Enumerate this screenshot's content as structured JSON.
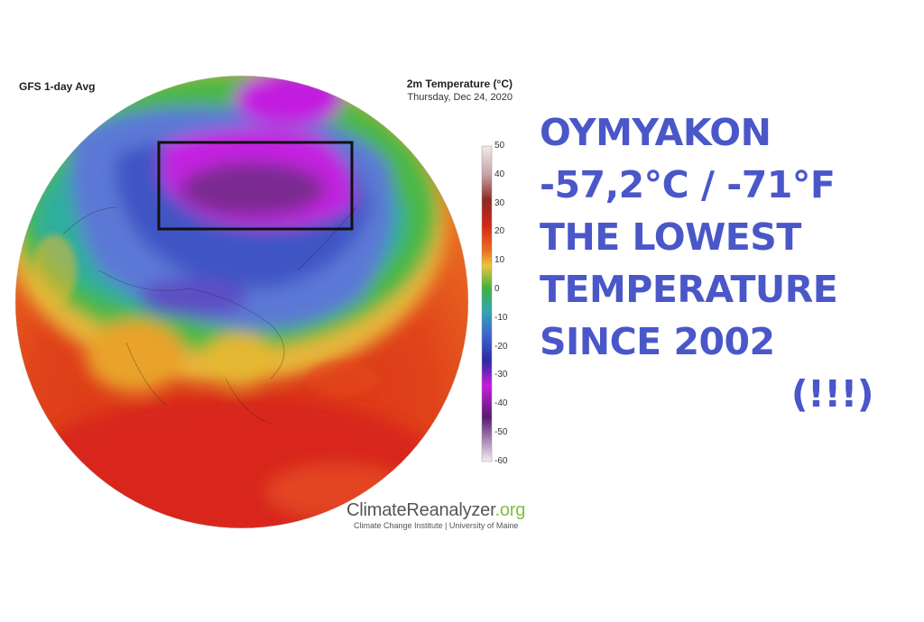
{
  "map": {
    "model_label": "GFS 1-day Avg",
    "variable_title": "2m Temperature (°C)",
    "date": "Thursday, Dec 24, 2020",
    "colorbar_ticks": [
      "50",
      "40",
      "30",
      "20",
      "10",
      "0",
      "-10",
      "-20",
      "-30",
      "-40",
      "-50",
      "-60"
    ],
    "colorbar_colors": [
      "#f2eaea",
      "#c8a3a6",
      "#8d2a24",
      "#d32617",
      "#ee6b1e",
      "#e9c63a",
      "#40b23b",
      "#2fa8b0",
      "#3e63d1",
      "#2a2aa2",
      "#c51ce0",
      "#5a1a72",
      "#f4edf4"
    ],
    "brand_main": "Climate",
    "brand_mid": "Reanalyzer",
    "brand_org": ".org",
    "brand_sub": "Climate Change Institute | University of Maine",
    "highlight_region": "Oymyakon box"
  },
  "headline": {
    "line1": "OYMYAKON",
    "line2": "-57,2°C / -71°F",
    "line3": "THE LOWEST",
    "line4": "TEMPERATURE",
    "line5": "SINCE 2002",
    "line6": "(!!!)",
    "color": "#4a57c9"
  }
}
